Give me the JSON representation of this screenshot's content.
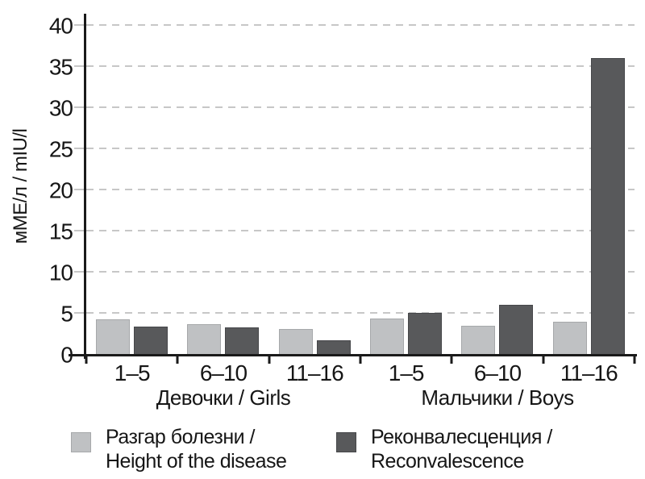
{
  "chart_data": {
    "type": "bar",
    "title": "",
    "ylabel": "мМЕ/л / mIU/l",
    "ylim": [
      0,
      40
    ],
    "yticks": [
      0,
      5,
      10,
      15,
      20,
      25,
      30,
      35,
      40
    ],
    "grid": "dashed-horizontal",
    "grid_color": "#c7c7c7",
    "axis_color": "#1a1a1a",
    "categories": [
      "1–5",
      "6–10",
      "11–16",
      "1–5",
      "6–10",
      "11–16"
    ],
    "sections": [
      {
        "label": "Девочки / Girls"
      },
      {
        "label": "Мальчики / Boys"
      }
    ],
    "series": [
      {
        "name": "Разгар болезни / Height of the disease",
        "color": "#bfc1c3",
        "values": [
          4.2,
          3.6,
          3.0,
          4.3,
          3.4,
          3.9
        ]
      },
      {
        "name": "Реконвалесценция / Reconvalescence",
        "color": "#58595b",
        "values": [
          3.3,
          3.2,
          1.7,
          5.0,
          6.0,
          36.0
        ]
      }
    ],
    "legend": {
      "position": "bottom",
      "items": [
        {
          "line1": "Разгар болезни /",
          "line2": "Height of the disease",
          "color": "#bfc1c3"
        },
        {
          "line1": "Реконвалесценция /",
          "line2": "Reconvalescence",
          "color": "#58595b"
        }
      ]
    }
  }
}
